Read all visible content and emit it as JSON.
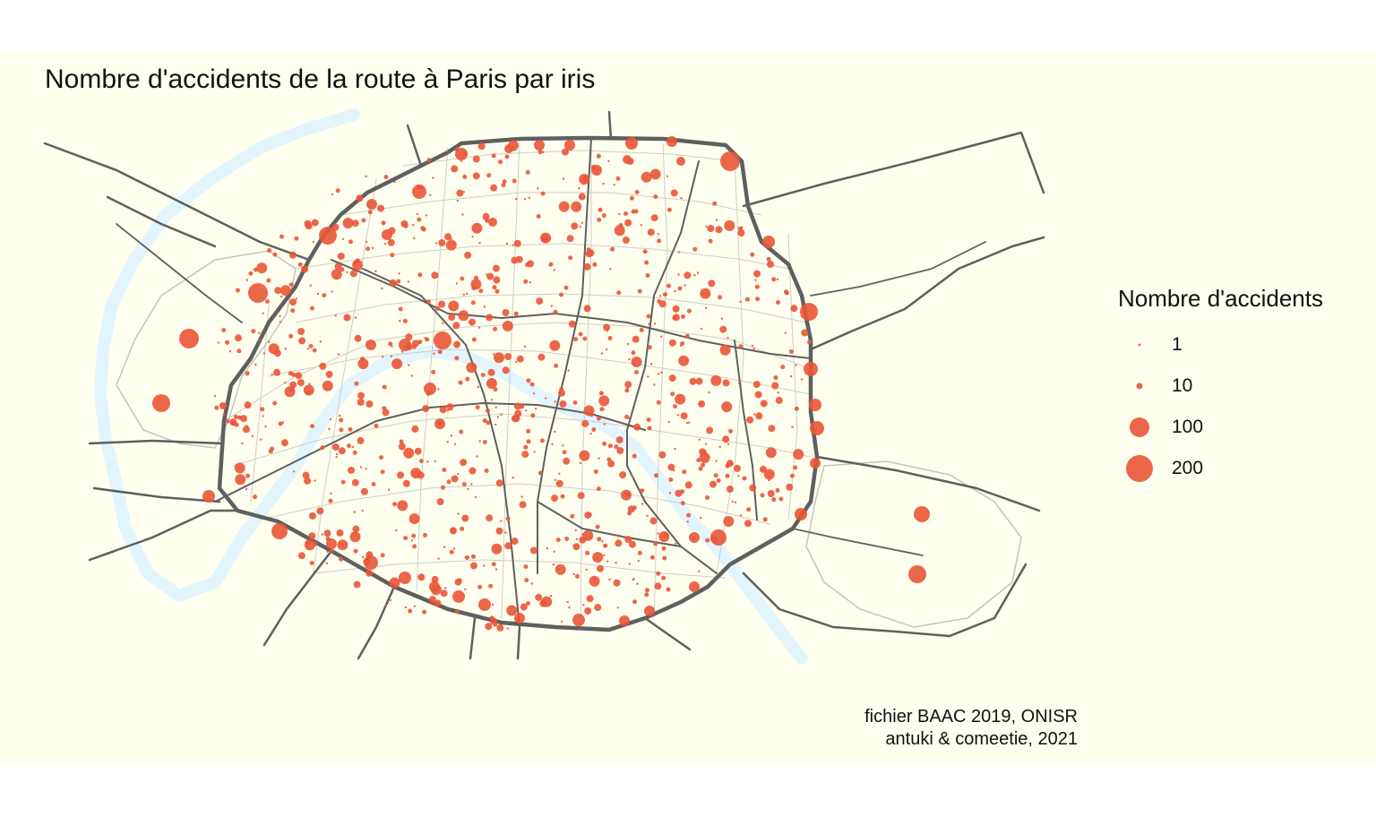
{
  "map": {
    "title": "Nombre d'accidents de la route à Paris par iris",
    "area": "Paris",
    "bubble_color": "#ea5537",
    "river_color": "#e3f5fc",
    "road_color": "#5f5f5f",
    "iris_border_color": "#c4c4bc",
    "background_color": "#fffff0"
  },
  "legend": {
    "title": "Nombre d'accidents",
    "items": [
      {
        "label": "1",
        "value": 1
      },
      {
        "label": "10",
        "value": 10
      },
      {
        "label": "100",
        "value": 100
      },
      {
        "label": "200",
        "value": 200
      }
    ]
  },
  "caption": {
    "line1": "fichier BAAC 2019, ONISR",
    "line2": "antuki & comeetie, 2021"
  }
}
